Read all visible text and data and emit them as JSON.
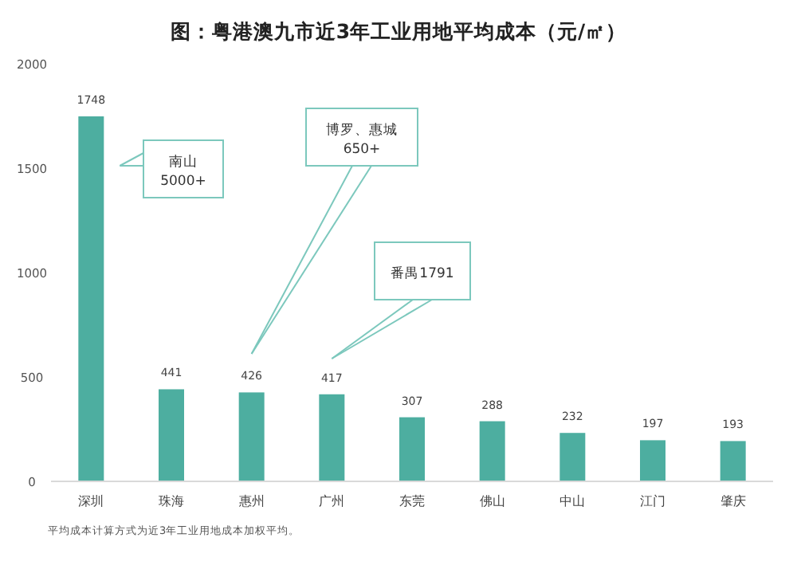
{
  "chart_data": {
    "type": "bar",
    "title": "图：粤港澳九市近3年工业用地平均成本（元/㎡）",
    "categories": [
      "深圳",
      "珠海",
      "惠州",
      "广州",
      "东莞",
      "佛山",
      "中山",
      "江门",
      "肇庆"
    ],
    "values": [
      1748,
      441,
      426,
      417,
      307,
      288,
      232,
      197,
      193
    ],
    "color": "#4daea0",
    "ylim": [
      0,
      2000
    ],
    "yticks": [
      0,
      500,
      1000,
      1500,
      2000
    ],
    "grid": false,
    "data_labels": true,
    "annotations": [
      "南山\n5000+",
      "博罗、惠城\n650+",
      "番禺1791",
      "平均成本计算方式为近3年工业用地成本加权平均。"
    ]
  }
}
